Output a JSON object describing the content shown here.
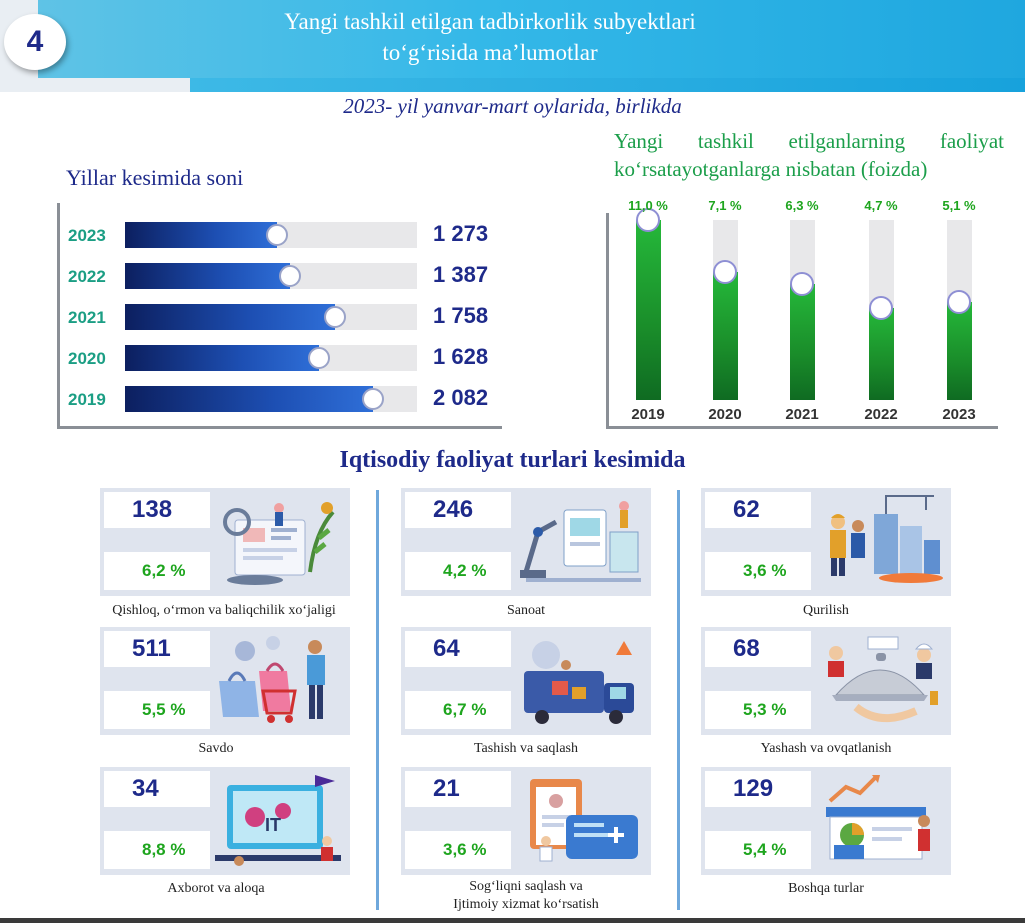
{
  "header": {
    "badge": "4",
    "title_line1": "Yangi tashkil etilgan tadbirkorlik subyektlari",
    "title_line2": "to‘g‘risida ma’lumotlar"
  },
  "subtitle": "2023- yil yanvar-mart oylarida, birlikda",
  "colors": {
    "accent": "#1e2a8a",
    "green": "#1ea51e",
    "teal": "#1b9e84",
    "cyan": "#1fa7df"
  },
  "chart_data": [
    {
      "type": "bar",
      "orientation": "horizontal",
      "title": "Yillar kesimida soni",
      "categories": [
        "2023",
        "2022",
        "2021",
        "2020",
        "2019"
      ],
      "values": [
        1273,
        1387,
        1758,
        1628,
        2082
      ],
      "value_labels": [
        "1 273",
        "1 387",
        "1 758",
        "1 628",
        "2 082"
      ],
      "xlim": [
        0,
        2400
      ]
    },
    {
      "type": "bar",
      "orientation": "vertical",
      "title_line1": "Yangi tashkil etilganlarning faoliyat",
      "title_line2": "ko‘rsatayotganlarga nisbatan (foizda)",
      "categories": [
        "2019",
        "2020",
        "2021",
        "2022",
        "2023"
      ],
      "values": [
        11.0,
        7.1,
        6.3,
        4.7,
        5.1
      ],
      "value_labels": [
        "11,0 %",
        "7,1 %",
        "6,3 %",
        "4,7 %",
        "5,1 %"
      ],
      "ylim": [
        0,
        12
      ]
    }
  ],
  "sectors": {
    "title": "Iqtisodiy faoliyat turlari kesimida",
    "items": [
      {
        "count": "138",
        "pct": "6,2 %",
        "label": "Qishloq, o‘rmon va baliqchilik xo‘jaligi",
        "icon": "agriculture-icon"
      },
      {
        "count": "246",
        "pct": "4,2 %",
        "label": "Sanoat",
        "icon": "industry-icon"
      },
      {
        "count": "62",
        "pct": "3,6 %",
        "label": "Qurilish",
        "icon": "construction-icon"
      },
      {
        "count": "511",
        "pct": "5,5 %",
        "label": "Savdo",
        "icon": "trade-icon"
      },
      {
        "count": "64",
        "pct": "6,7 %",
        "label": "Tashish va saqlash",
        "icon": "transport-icon"
      },
      {
        "count": "68",
        "pct": "5,3 %",
        "label": "Yashash va ovqatlanish",
        "icon": "hospitality-icon"
      },
      {
        "count": "34",
        "pct": "8,8 %",
        "label": "Axborot va aloqa",
        "icon": "it-icon"
      },
      {
        "count": "21",
        "pct": "3,6 %",
        "label_line1": "Sog‘liqni saqlash va",
        "label_line2": "Ijtimoiy xizmat ko‘rsatish",
        "icon": "health-icon"
      },
      {
        "count": "129",
        "pct": "5,4 %",
        "label": "Boshqa turlar",
        "icon": "other-icon"
      }
    ]
  }
}
